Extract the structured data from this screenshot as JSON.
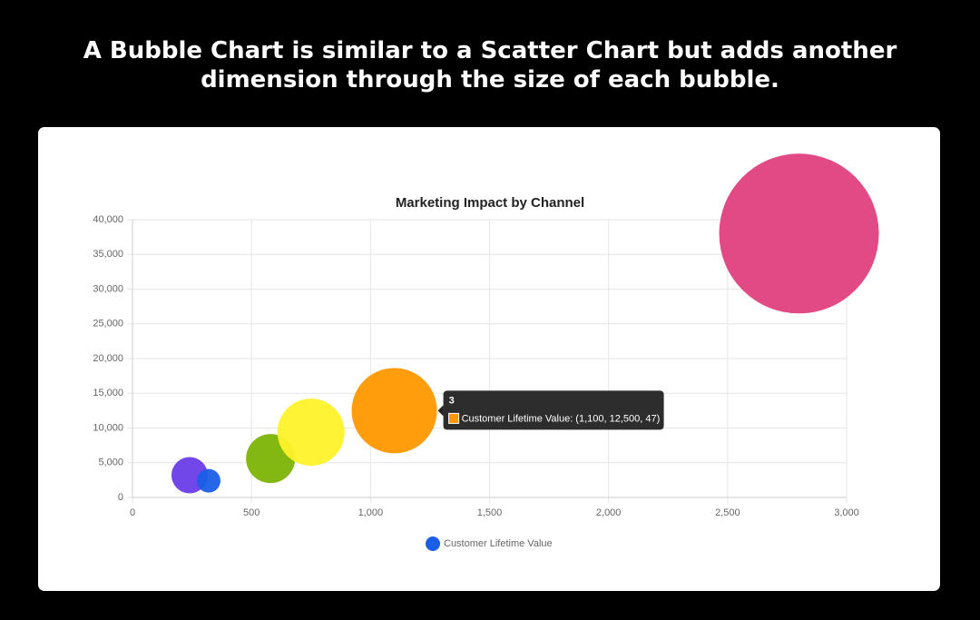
{
  "page_title": "A Bubble Chart is similar to a Scatter Chart but adds another dimension through the size of each bubble.",
  "chart_data": {
    "type": "bubble",
    "title": "Marketing Impact by Channel",
    "series": [
      {
        "name": "Customer Lifetime Value",
        "color": "#1a5ee8",
        "x": [
          240,
          320,
          580,
          750,
          1100,
          2800
        ],
        "values": [
          3200,
          2400,
          5600,
          9400,
          12500,
          38000
        ],
        "sizes": [
          20,
          13,
          27,
          37,
          47,
          88
        ],
        "colors": [
          "#6a3de8",
          "#1a5ee8",
          "#7cb305",
          "#fff22a",
          "#ff9800",
          "#e0407f"
        ]
      }
    ],
    "xlim": [
      0,
      3000
    ],
    "xticks": [
      0,
      500,
      {
        "value": 1000,
        "label": "1,000"
      },
      {
        "value": 1500,
        "label": "1,500"
      },
      {
        "value": 2000,
        "label": "2,000"
      },
      {
        "value": 2500,
        "label": "2,500"
      },
      {
        "value": 3000,
        "label": "3,000"
      }
    ],
    "ylim": [
      0,
      40000
    ],
    "yticks": [
      0,
      {
        "value": 5000,
        "label": "5,000"
      },
      {
        "value": 10000,
        "label": "10,000"
      },
      {
        "value": 15000,
        "label": "15,000"
      },
      {
        "value": 20000,
        "label": "20,000"
      },
      {
        "value": 25000,
        "label": "25,000"
      },
      {
        "value": 30000,
        "label": "30,000"
      },
      {
        "value": 35000,
        "label": "35,000"
      },
      {
        "value": 40000,
        "label": "40,000"
      }
    ],
    "grid": true,
    "legend": "bottom",
    "tooltip": {
      "title": "3",
      "text": "Customer Lifetime Value: (1,100, 12,500, 47)",
      "point": 4
    }
  }
}
